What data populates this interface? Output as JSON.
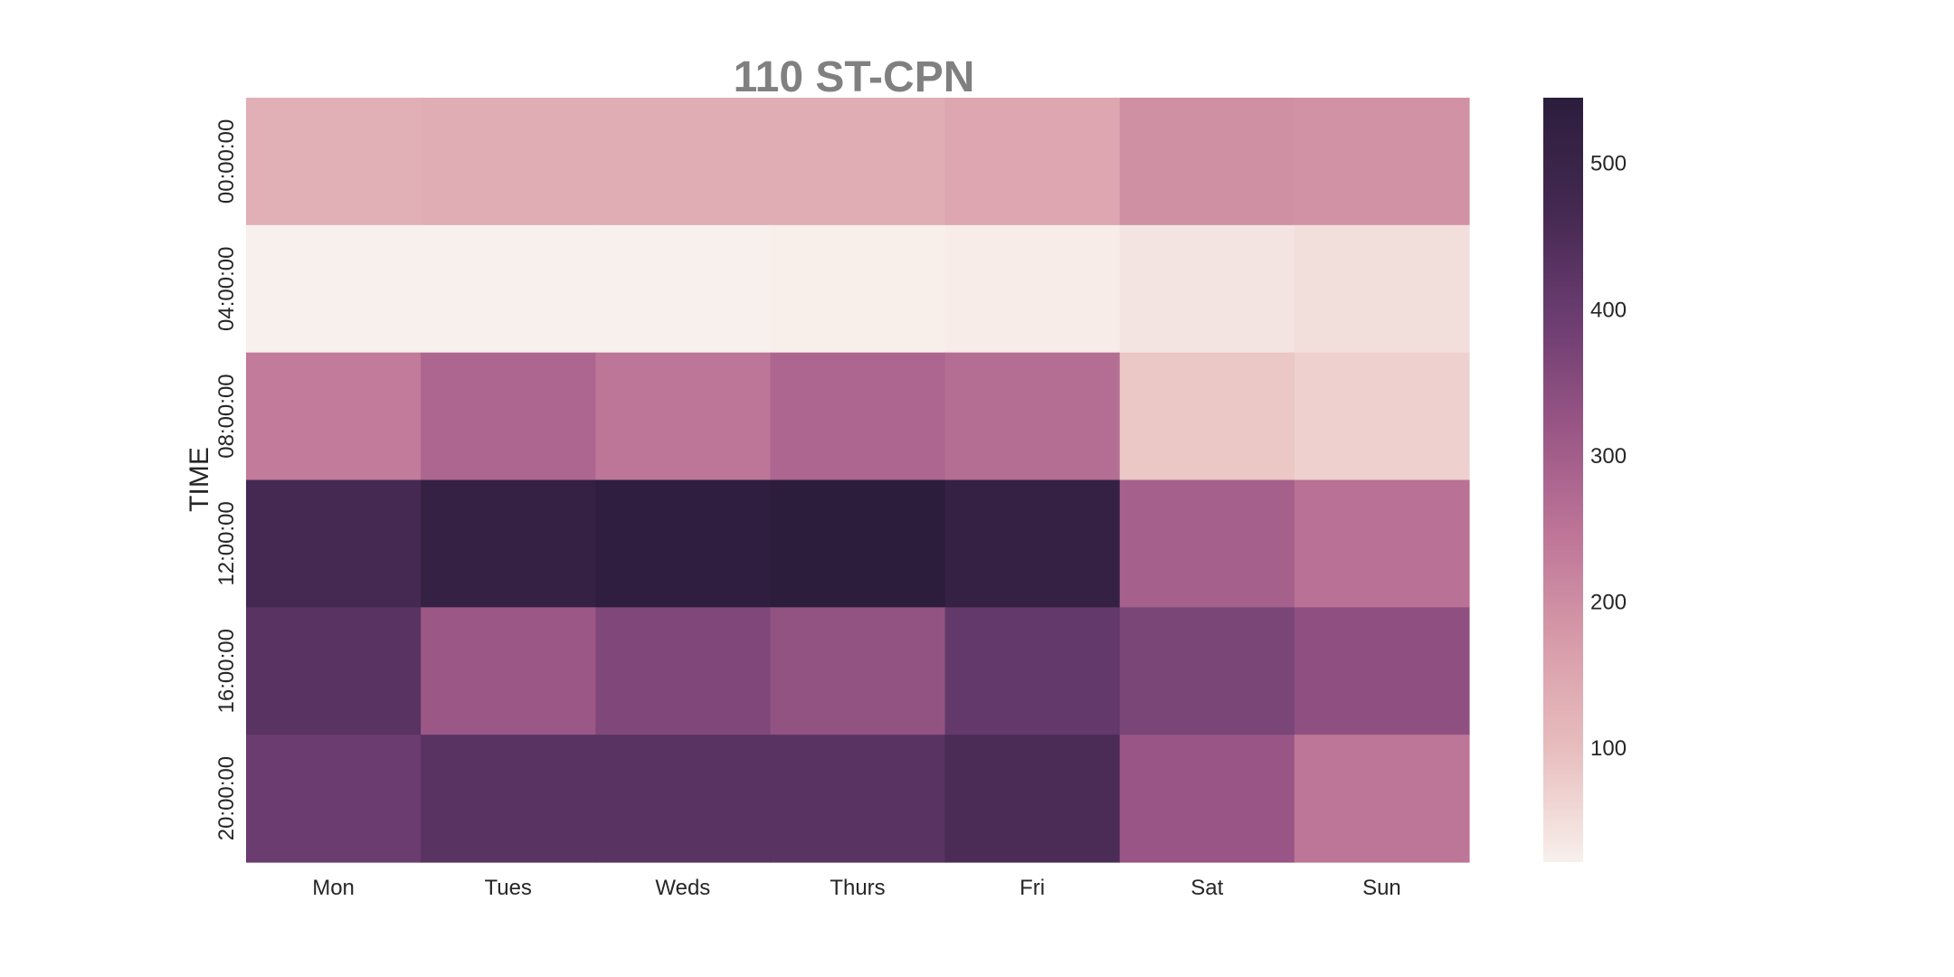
{
  "chart_data": {
    "type": "heatmap",
    "title": "110 ST-CPN",
    "xlabel": "",
    "ylabel": "TIME",
    "x_categories": [
      "Mon",
      "Tues",
      "Weds",
      "Thurs",
      "Fri",
      "Sat",
      "Sun"
    ],
    "y_categories": [
      "00:00:00",
      "04:00:00",
      "08:00:00",
      "12:00:00",
      "16:00:00",
      "20:00:00"
    ],
    "values": [
      [
        130,
        135,
        135,
        135,
        150,
        195,
        190
      ],
      [
        22,
        22,
        22,
        23,
        28,
        40,
        50
      ],
      [
        235,
        280,
        245,
        280,
        265,
        85,
        70
      ],
      [
        465,
        515,
        535,
        545,
        520,
        295,
        255
      ],
      [
        430,
        315,
        360,
        330,
        410,
        370,
        335
      ],
      [
        395,
        430,
        430,
        430,
        455,
        320,
        245
      ]
    ],
    "colorbar": {
      "vmin": 22,
      "vmax": 545,
      "ticks": [
        100,
        200,
        300,
        400,
        500
      ],
      "tick_labels": [
        "100",
        "200",
        "300",
        "400",
        "500"
      ]
    },
    "colormap": [
      "#f8f0ec",
      "#e8bfbf",
      "#d89caa",
      "#be7598",
      "#985585",
      "#6b3c70",
      "#432850",
      "#2c1d3c"
    ]
  }
}
